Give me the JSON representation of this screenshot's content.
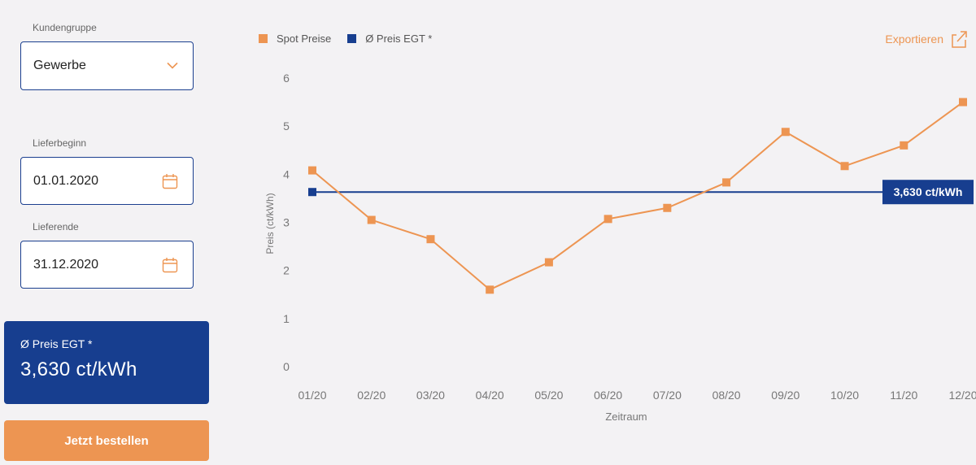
{
  "form": {
    "customer_group_label": "Kundengruppe",
    "customer_group_value": "Gewerbe",
    "start_label": "Lieferbeginn",
    "start_value": "01.01.2020",
    "end_label": "Lieferende",
    "end_value": "31.12.2020"
  },
  "price_card": {
    "label": "Ø Preis EGT *",
    "value": "3,630 ct/kWh"
  },
  "order_button": "Jetzt bestellen",
  "export_label": "Exportieren",
  "colors": {
    "spot": "#ed9552",
    "avg": "#173e8f",
    "accent": "#ed9552"
  },
  "icons": {
    "dropdown": "chevron-down-icon",
    "date": "calendar-icon",
    "export": "share-icon"
  },
  "chart_data": {
    "type": "line",
    "categories": [
      "01/20",
      "02/20",
      "03/20",
      "04/20",
      "05/20",
      "06/20",
      "07/20",
      "08/20",
      "09/20",
      "10/20",
      "11/20",
      "12/20"
    ],
    "series": [
      {
        "name": "Spot Preise",
        "values": [
          4.08,
          3.05,
          2.65,
          1.6,
          2.17,
          3.07,
          3.3,
          3.83,
          4.88,
          4.17,
          4.6,
          5.5
        ]
      },
      {
        "name": "Ø Preis EGT *",
        "values": [
          3.63,
          3.63,
          3.63,
          3.63,
          3.63,
          3.63,
          3.63,
          3.63,
          3.63,
          3.63,
          3.63,
          3.63
        ]
      }
    ],
    "avg_label": "3,630 ct/kWh",
    "xlabel": "Zeitraum",
    "ylabel": "Preis (ct/kWh)",
    "ylim": [
      0,
      6
    ],
    "yticks": [
      "0",
      "1",
      "2",
      "3",
      "4",
      "5",
      "6"
    ],
    "grid": false,
    "legend": "top-left"
  }
}
